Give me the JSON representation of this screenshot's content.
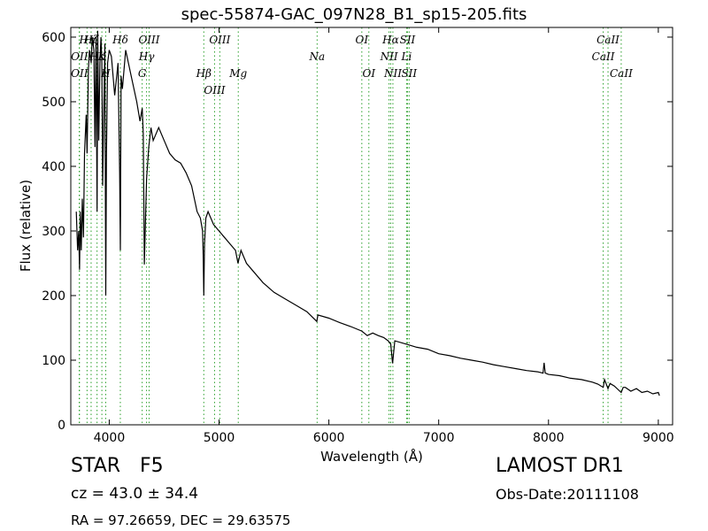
{
  "chart_data": {
    "type": "line",
    "title": "spec-55874-GAC_097N28_B1_sp15-205.fits",
    "xlabel": "Wavelength (Å)",
    "ylabel": "Flux (relative)",
    "xlim": [
      3650,
      9130
    ],
    "ylim": [
      0,
      615
    ],
    "xticks": [
      4000,
      5000,
      6000,
      7000,
      8000,
      9000
    ],
    "yticks": [
      0,
      100,
      200,
      300,
      400,
      500,
      600
    ],
    "grid": false,
    "series": [
      {
        "color": "#000000",
        "x": [
          3700,
          3712,
          3722,
          3730,
          3736,
          3745,
          3755,
          3765,
          3775,
          3790,
          3798,
          3810,
          3820,
          3835,
          3845,
          3860,
          3870,
          3880,
          3889,
          3895,
          3905,
          3915,
          3925,
          3933,
          3940,
          3950,
          3960,
          3968,
          3975,
          3985,
          4000,
          4020,
          4050,
          4080,
          4095,
          4101,
          4108,
          4120,
          4150,
          4200,
          4250,
          4280,
          4300,
          4310,
          4320,
          4340,
          4360,
          4380,
          4400,
          4450,
          4500,
          4550,
          4600,
          4650,
          4700,
          4750,
          4800,
          4830,
          4850,
          4855,
          4861,
          4868,
          4880,
          4900,
          4950,
          5000,
          5050,
          5100,
          5150,
          5172,
          5200,
          5250,
          5300,
          5400,
          5500,
          5600,
          5700,
          5800,
          5890,
          5900,
          6000,
          6100,
          6200,
          6300,
          6350,
          6400,
          6450,
          6500,
          6540,
          6563,
          6580,
          6600,
          6700,
          6800,
          6900,
          7000,
          7100,
          7200,
          7300,
          7400,
          7500,
          7600,
          7700,
          7800,
          7900,
          7950,
          7960,
          7970,
          8000,
          8100,
          8200,
          8300,
          8400,
          8450,
          8498,
          8510,
          8542,
          8560,
          8600,
          8662,
          8680,
          8700,
          8750,
          8800,
          8850,
          8900,
          8950,
          9000,
          9010
        ],
        "y": [
          330,
          270,
          300,
          240,
          330,
          270,
          350,
          290,
          420,
          480,
          420,
          550,
          580,
          560,
          600,
          580,
          430,
          600,
          330,
          610,
          440,
          560,
          600,
          560,
          370,
          480,
          590,
          200,
          420,
          560,
          580,
          570,
          510,
          560,
          390,
          270,
          540,
          520,
          580,
          540,
          500,
          470,
          490,
          450,
          248,
          380,
          430,
          460,
          440,
          460,
          440,
          420,
          410,
          405,
          390,
          370,
          330,
          320,
          300,
          270,
          200,
          280,
          320,
          330,
          310,
          300,
          290,
          280,
          270,
          250,
          270,
          250,
          240,
          220,
          205,
          195,
          185,
          175,
          160,
          170,
          165,
          158,
          152,
          145,
          138,
          142,
          138,
          135,
          130,
          125,
          95,
          130,
          125,
          120,
          117,
          110,
          107,
          103,
          100,
          97,
          93,
          90,
          87,
          84,
          82,
          80,
          96,
          80,
          78,
          76,
          72,
          70,
          66,
          63,
          58,
          70,
          56,
          64,
          60,
          50,
          58,
          58,
          52,
          56,
          50,
          52,
          48,
          50,
          45
        ]
      }
    ],
    "lines": [
      {
        "x": 3727,
        "label": "OII"
      },
      {
        "x": 3729,
        "label": "OII"
      },
      {
        "x": 3798,
        "label": "Hη"
      },
      {
        "x": 3835,
        "label": "Hζ"
      },
      {
        "x": 3889,
        "label": "Hε"
      },
      {
        "x": 3933,
        "label": "CaII K"
      },
      {
        "x": 3968,
        "label": "CaII H"
      },
      {
        "x": 4101,
        "label": "Hδ"
      },
      {
        "x": 4300,
        "label": "G"
      },
      {
        "x": 4340,
        "label": "Hγ"
      },
      {
        "x": 4363,
        "label": "OIII"
      },
      {
        "x": 4861,
        "label": "Hβ"
      },
      {
        "x": 4959,
        "label": "OIII"
      },
      {
        "x": 5007,
        "label": "OIII"
      },
      {
        "x": 5175,
        "label": "Mg"
      },
      {
        "x": 5893,
        "label": "Na"
      },
      {
        "x": 6300,
        "label": "OI"
      },
      {
        "x": 6364,
        "label": "OI"
      },
      {
        "x": 6548,
        "label": "NII"
      },
      {
        "x": 6563,
        "label": "Hα"
      },
      {
        "x": 6583,
        "label": "NII"
      },
      {
        "x": 6708,
        "label": "Li"
      },
      {
        "x": 6716,
        "label": "SII"
      },
      {
        "x": 6731,
        "label": "SII"
      },
      {
        "x": 8498,
        "label": "CaII"
      },
      {
        "x": 8542,
        "label": "CaII"
      },
      {
        "x": 8662,
        "label": "CaII"
      }
    ],
    "line_labels": [
      {
        "x": 3798,
        "row": 1,
        "text": "Hη"
      },
      {
        "x": 3729,
        "row": 2,
        "text": "OII"
      },
      {
        "x": 3729,
        "row": 3,
        "text": "OII"
      },
      {
        "x": 3835,
        "row": 1,
        "text": "Hζ"
      },
      {
        "x": 3889,
        "row": 2,
        "text": "Hε"
      },
      {
        "x": 3933,
        "row": 2,
        "text": "K"
      },
      {
        "x": 3968,
        "row": 3,
        "text": "H"
      },
      {
        "x": 4101,
        "row": 1,
        "text": "Hδ"
      },
      {
        "x": 4363,
        "row": 1,
        "text": "OIII"
      },
      {
        "x": 4340,
        "row": 2,
        "text": "Hγ"
      },
      {
        "x": 4300,
        "row": 3,
        "text": "G"
      },
      {
        "x": 5007,
        "row": 1,
        "text": "OIII"
      },
      {
        "x": 4861,
        "row": 3,
        "text": "Hβ"
      },
      {
        "x": 4959,
        "row": 4,
        "text": "OIII"
      },
      {
        "x": 5175,
        "row": 3,
        "text": "Mg"
      },
      {
        "x": 5893,
        "row": 2,
        "text": "Na"
      },
      {
        "x": 6300,
        "row": 1,
        "text": "OI"
      },
      {
        "x": 6364,
        "row": 3,
        "text": "OI"
      },
      {
        "x": 6563,
        "row": 1,
        "text": "Hα"
      },
      {
        "x": 6548,
        "row": 2,
        "text": "NII"
      },
      {
        "x": 6583,
        "row": 3,
        "text": "NII"
      },
      {
        "x": 6716,
        "row": 1,
        "text": "SII"
      },
      {
        "x": 6708,
        "row": 2,
        "text": "Li"
      },
      {
        "x": 6731,
        "row": 3,
        "text": "SII"
      },
      {
        "x": 8542,
        "row": 1,
        "text": "CaII"
      },
      {
        "x": 8498,
        "row": 2,
        "text": "CaII"
      },
      {
        "x": 8662,
        "row": 3,
        "text": "CaII"
      }
    ],
    "line_color": "#2ca02c"
  },
  "footer": {
    "object_class": "STAR",
    "subclass": "F5",
    "cz": "cz = 43.0  ± 34.4",
    "coords": "RA = 97.26659, DEC = 29.63575",
    "survey": "LAMOST DR1",
    "obs_date": "Obs-Date:20111108"
  }
}
